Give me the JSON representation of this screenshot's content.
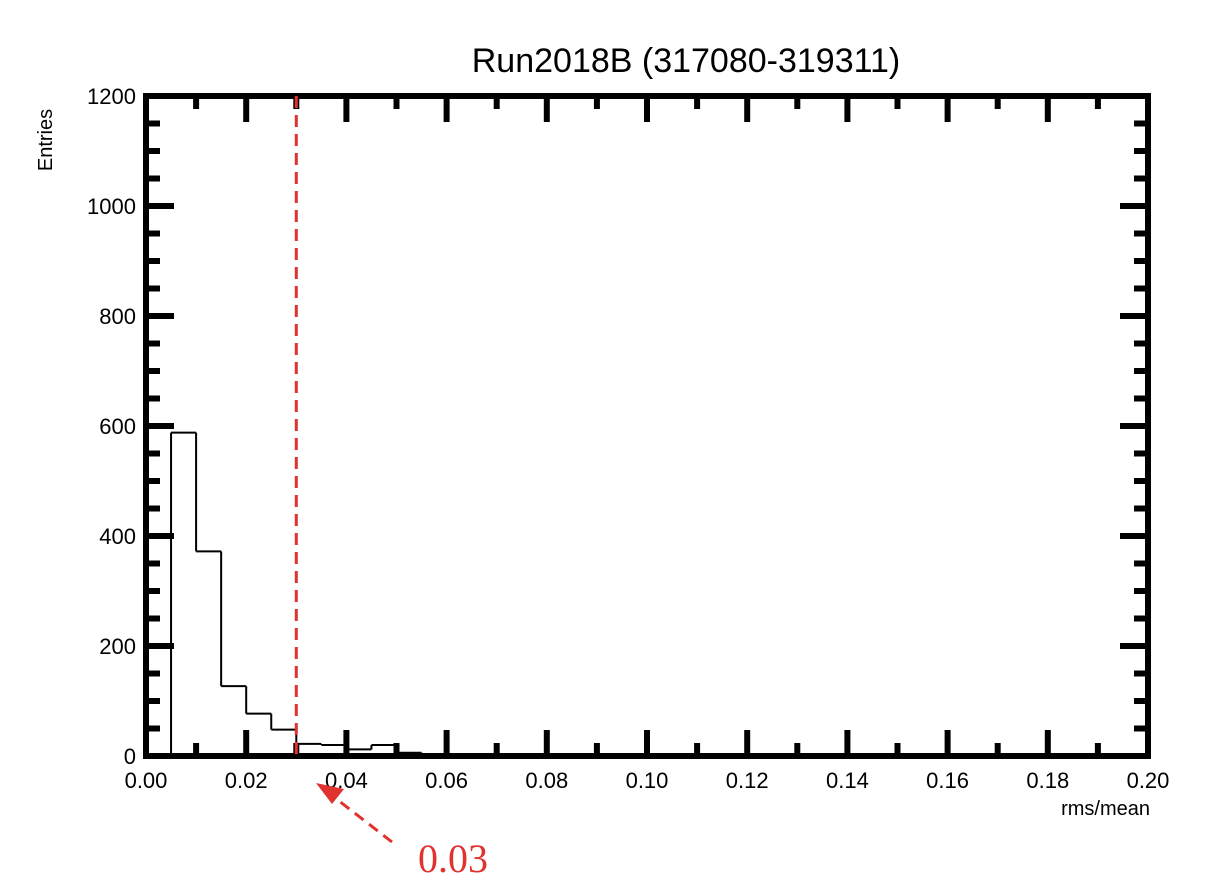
{
  "chart_data": {
    "type": "histogram",
    "title": "Run2018B (317080-319311)",
    "xlabel": "rms/mean",
    "ylabel": "Entries",
    "xlim": [
      0.0,
      0.2
    ],
    "ylim": [
      0,
      1200
    ],
    "x_ticks": [
      "0.00",
      "0.02",
      "0.04",
      "0.06",
      "0.08",
      "0.10",
      "0.12",
      "0.14",
      "0.16",
      "0.18",
      "0.20"
    ],
    "y_ticks": [
      "0",
      "200",
      "400",
      "600",
      "800",
      "1000",
      "1200"
    ],
    "bin_width": 0.005,
    "bins": [
      {
        "x_low": 0.005,
        "count": 588
      },
      {
        "x_low": 0.01,
        "count": 372
      },
      {
        "x_low": 0.015,
        "count": 127
      },
      {
        "x_low": 0.02,
        "count": 77
      },
      {
        "x_low": 0.025,
        "count": 48
      },
      {
        "x_low": 0.03,
        "count": 22
      },
      {
        "x_low": 0.035,
        "count": 20
      },
      {
        "x_low": 0.04,
        "count": 12
      },
      {
        "x_low": 0.045,
        "count": 20
      },
      {
        "x_low": 0.05,
        "count": 6
      }
    ],
    "cut_line": {
      "x": 0.03,
      "color": "#e0322f",
      "style": "dashed"
    },
    "annotation": {
      "text": "0.03",
      "color": "#e0322f"
    },
    "line_color": "#000000"
  }
}
